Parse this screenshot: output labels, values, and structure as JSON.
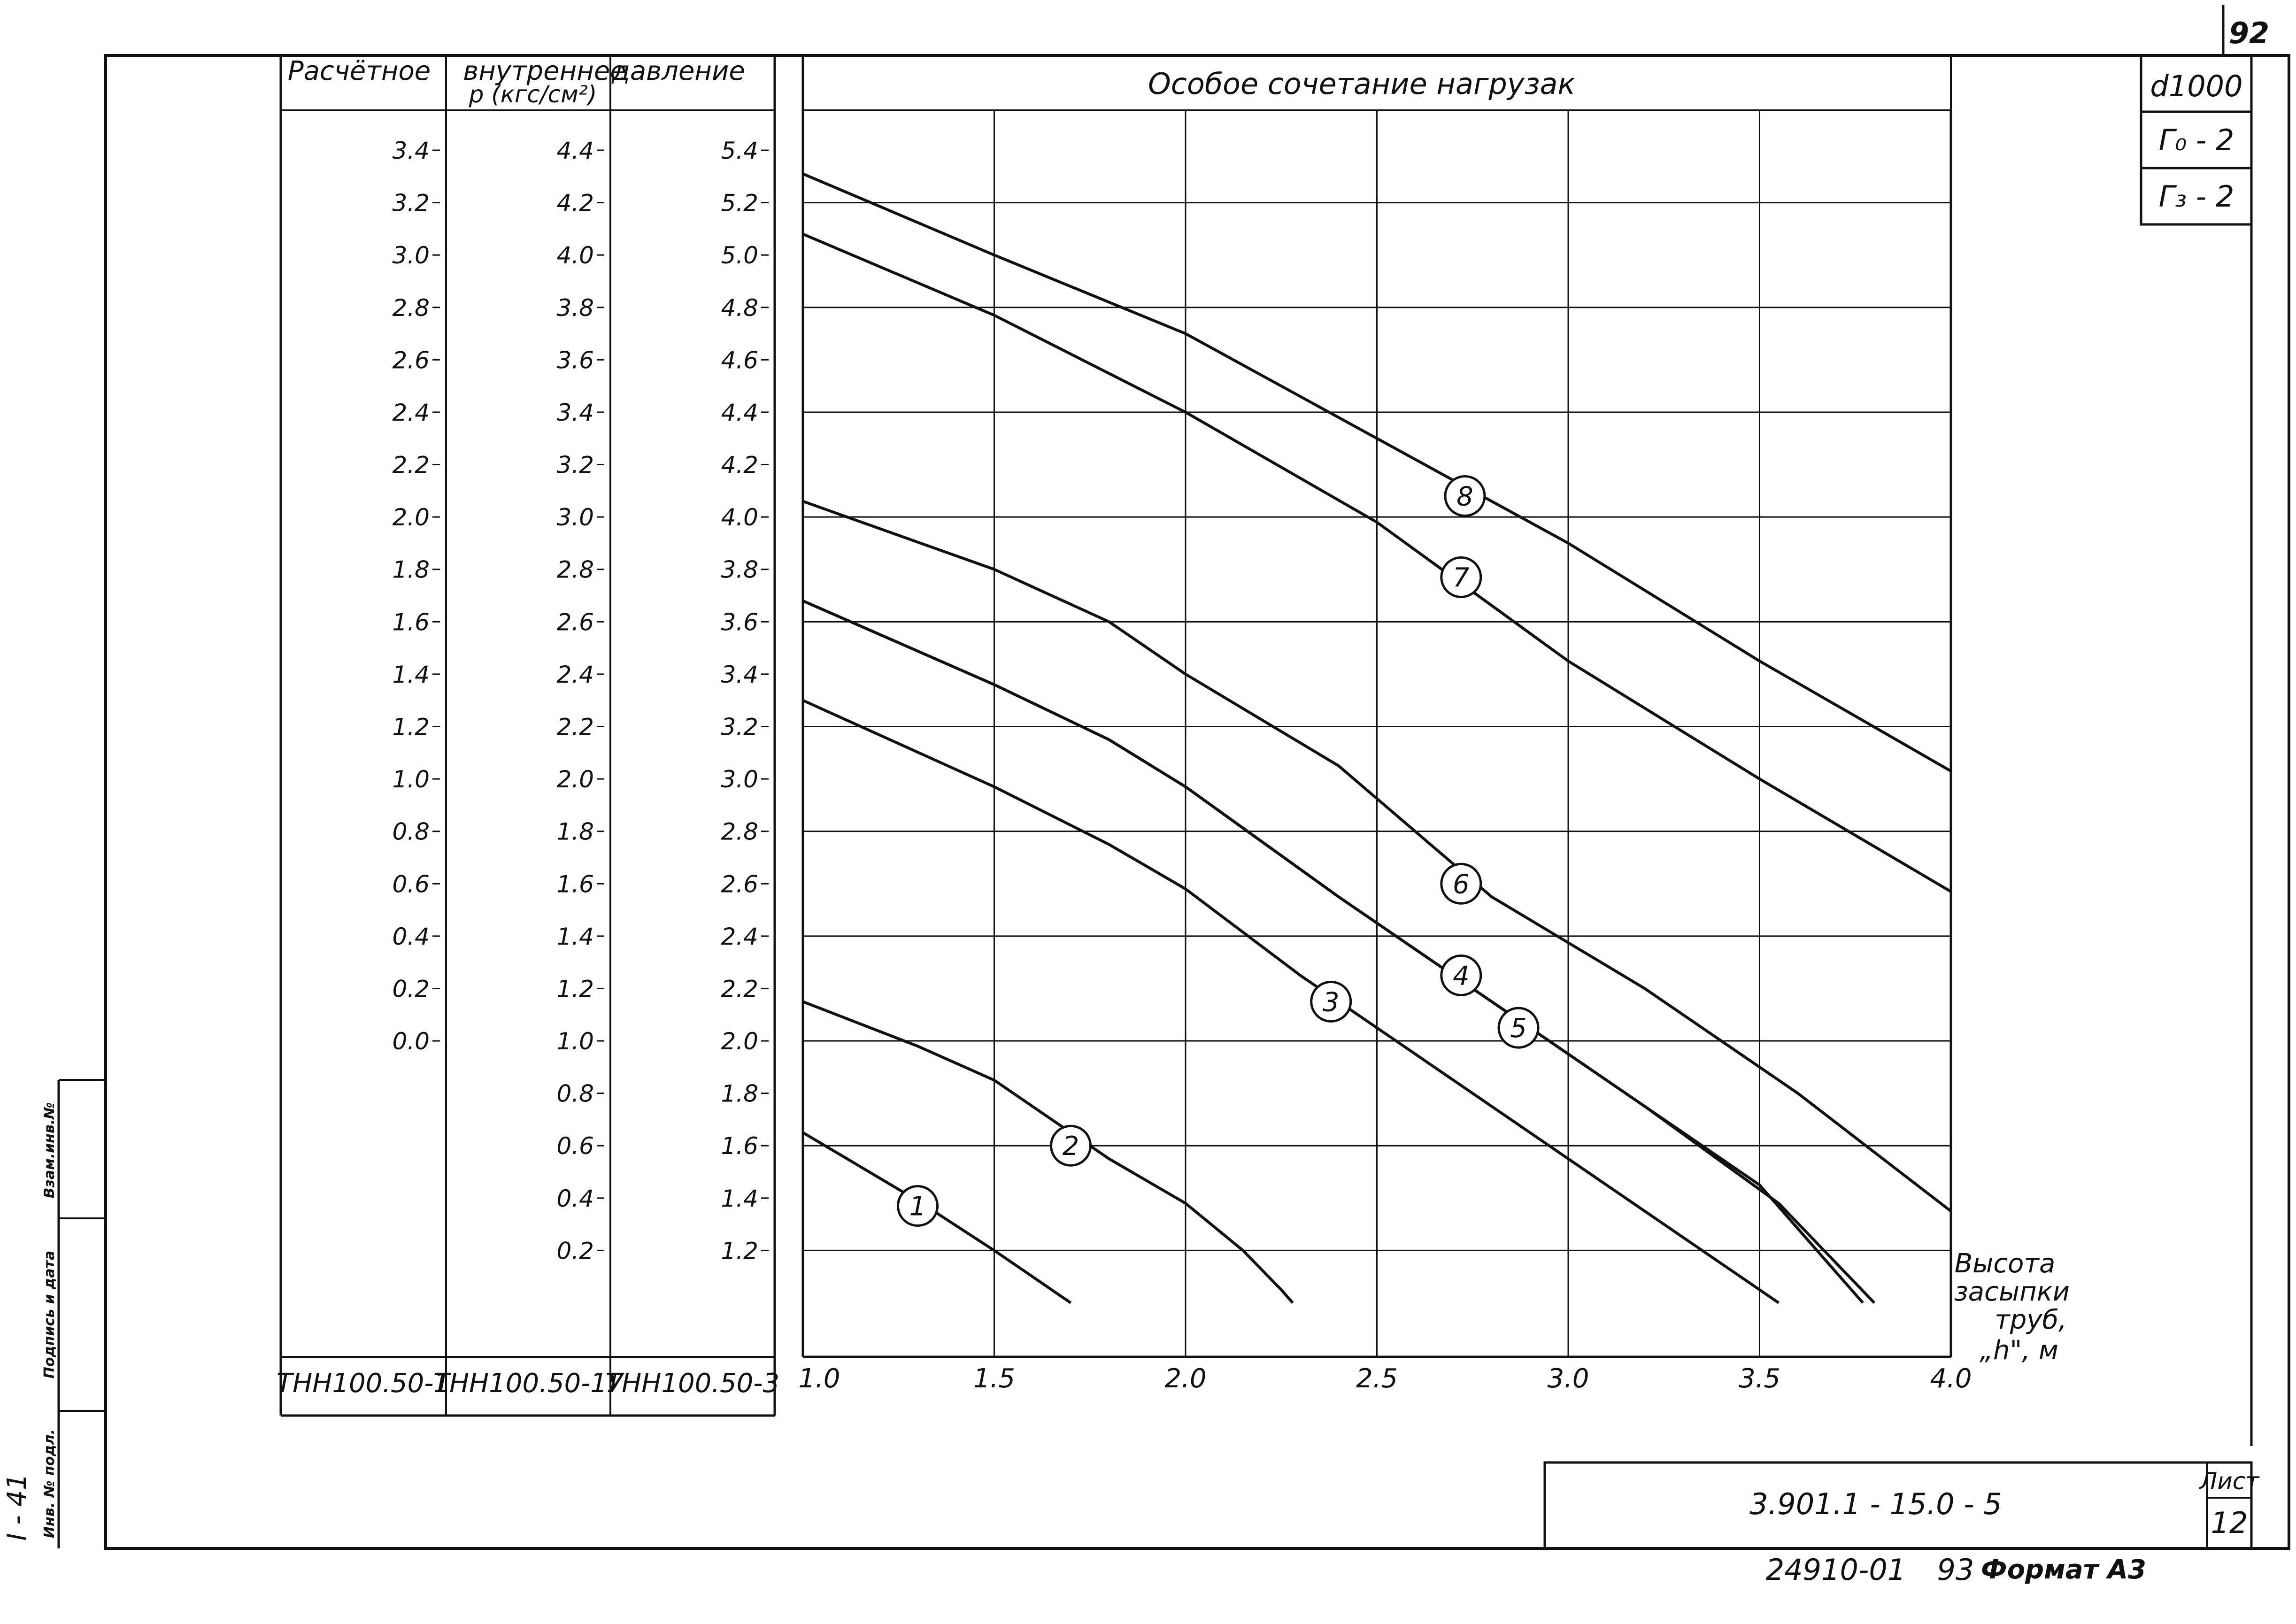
{
  "sheet": {
    "corner_number": "92",
    "title_block_code": "3.901.1 - 15.0 - 5",
    "sheet_label": "Лист",
    "sheet_number": "12",
    "footer_code": "24910-01",
    "footer_num": "93",
    "format_label": "Формат A3",
    "side_vertical": "I - 41",
    "side_cells": [
      "Инв. № подл.",
      "Подпись и дата",
      "Взам.инв.№"
    ],
    "stamps": [
      "d1000",
      "Г₀ - 2",
      "Г₃ - 2"
    ]
  },
  "pressure_table": {
    "header_line1": [
      "Расчётное",
      "внутреннее",
      "давление"
    ],
    "header_line2": "p (кгс/см²)",
    "columns": [
      {
        "code": "ТНН100.50-1",
        "labels": [
          "3.4",
          "3.2",
          "3.0",
          "2.8",
          "2.6",
          "2.4",
          "2.2",
          "2.0",
          "1.8",
          "1.6",
          "1.4",
          "1.2",
          "1.0",
          "0.8",
          "0.6",
          "0.4",
          "0.2",
          "0.0"
        ]
      },
      {
        "code": "ТНН100.50-1У",
        "labels": [
          "4.4",
          "4.2",
          "4.0",
          "3.8",
          "3.6",
          "3.4",
          "3.2",
          "3.0",
          "2.8",
          "2.6",
          "2.4",
          "2.2",
          "2.0",
          "1.8",
          "1.6",
          "1.4",
          "1.2",
          "1.0",
          "0.8",
          "0.6",
          "0.4",
          "0.2"
        ]
      },
      {
        "code": "ТНН100.50-3",
        "labels": [
          "5.4",
          "5.2",
          "5.0",
          "4.8",
          "4.6",
          "4.4",
          "4.2",
          "4.0",
          "3.8",
          "3.6",
          "3.4",
          "3.2",
          "3.0",
          "2.8",
          "2.6",
          "2.4",
          "2.2",
          "2.0",
          "1.8",
          "1.6",
          "1.4",
          "1.2"
        ]
      }
    ]
  },
  "chart_data": {
    "type": "line",
    "title": "Особое сочетание нагрузак",
    "xlabel": "Высота засыпки труб, „h\", м",
    "xlabel_lines": [
      "Высота",
      "засыпки",
      "труб,",
      "„h\", м"
    ],
    "ylabel": "Расчётное внутреннее давление p (кгс/см²)",
    "xlim": [
      1.0,
      4.0
    ],
    "ylim": [
      1.0,
      5.4
    ],
    "y_scale_column": "ТНН100.50-3",
    "grid": true,
    "x_ticks": [
      "1.0",
      "1.5",
      "2.0",
      "2.5",
      "3.0",
      "3.5",
      "4.0"
    ],
    "x_tick_values": [
      1.0,
      1.5,
      2.0,
      2.5,
      3.0,
      3.5,
      4.0
    ],
    "series": [
      {
        "name": "1",
        "label_at": [
          1.3,
          1.37
        ],
        "points": [
          [
            1.0,
            1.65
          ],
          [
            1.3,
            1.39
          ],
          [
            1.5,
            1.2
          ],
          [
            1.65,
            1.05
          ],
          [
            1.7,
            1.0
          ]
        ]
      },
      {
        "name": "2",
        "label_at": [
          1.7,
          1.6
        ],
        "points": [
          [
            1.0,
            2.15
          ],
          [
            1.3,
            1.98
          ],
          [
            1.5,
            1.85
          ],
          [
            1.8,
            1.55
          ],
          [
            2.0,
            1.38
          ],
          [
            2.15,
            1.2
          ],
          [
            2.25,
            1.05
          ],
          [
            2.28,
            1.0
          ]
        ]
      },
      {
        "name": "3",
        "label_at": [
          2.38,
          2.15
        ],
        "points": [
          [
            1.0,
            3.3
          ],
          [
            1.5,
            2.97
          ],
          [
            1.8,
            2.75
          ],
          [
            2.0,
            2.58
          ],
          [
            2.3,
            2.25
          ],
          [
            2.6,
            1.95
          ],
          [
            3.0,
            1.55
          ],
          [
            3.3,
            1.25
          ],
          [
            3.55,
            1.0
          ]
        ]
      },
      {
        "name": "4",
        "label_at": [
          2.72,
          2.25
        ],
        "points": [
          [
            1.0,
            3.68
          ],
          [
            1.5,
            3.36
          ],
          [
            1.8,
            3.15
          ],
          [
            2.0,
            2.97
          ],
          [
            2.4,
            2.55
          ],
          [
            2.8,
            2.15
          ],
          [
            3.2,
            1.75
          ],
          [
            3.5,
            1.45
          ],
          [
            3.77,
            1.0
          ]
        ]
      },
      {
        "name": "5",
        "label_at": [
          2.87,
          2.05
        ],
        "points": [
          [
            1.0,
            3.68
          ],
          [
            1.5,
            3.36
          ],
          [
            1.8,
            3.15
          ],
          [
            2.0,
            2.97
          ],
          [
            2.4,
            2.55
          ],
          [
            2.8,
            2.15
          ],
          [
            3.2,
            1.75
          ],
          [
            3.55,
            1.38
          ],
          [
            3.8,
            1.0
          ]
        ]
      },
      {
        "name": "6",
        "label_at": [
          2.72,
          2.6
        ],
        "points": [
          [
            1.0,
            4.06
          ],
          [
            1.5,
            3.8
          ],
          [
            1.8,
            3.6
          ],
          [
            2.0,
            3.4
          ],
          [
            2.4,
            3.05
          ],
          [
            2.8,
            2.55
          ],
          [
            3.2,
            2.2
          ],
          [
            3.6,
            1.8
          ],
          [
            4.0,
            1.35
          ]
        ]
      },
      {
        "name": "7",
        "label_at": [
          2.72,
          3.77
        ],
        "points": [
          [
            1.0,
            5.08
          ],
          [
            1.5,
            4.77
          ],
          [
            2.0,
            4.4
          ],
          [
            2.5,
            3.98
          ],
          [
            3.0,
            3.45
          ],
          [
            3.5,
            3.0
          ],
          [
            4.0,
            2.57
          ]
        ]
      },
      {
        "name": "8",
        "label_at": [
          2.73,
          4.08
        ],
        "points": [
          [
            1.0,
            5.31
          ],
          [
            1.5,
            5.0
          ],
          [
            2.0,
            4.7
          ],
          [
            2.5,
            4.3
          ],
          [
            3.0,
            3.9
          ],
          [
            3.5,
            3.45
          ],
          [
            4.0,
            3.03
          ]
        ]
      }
    ]
  }
}
